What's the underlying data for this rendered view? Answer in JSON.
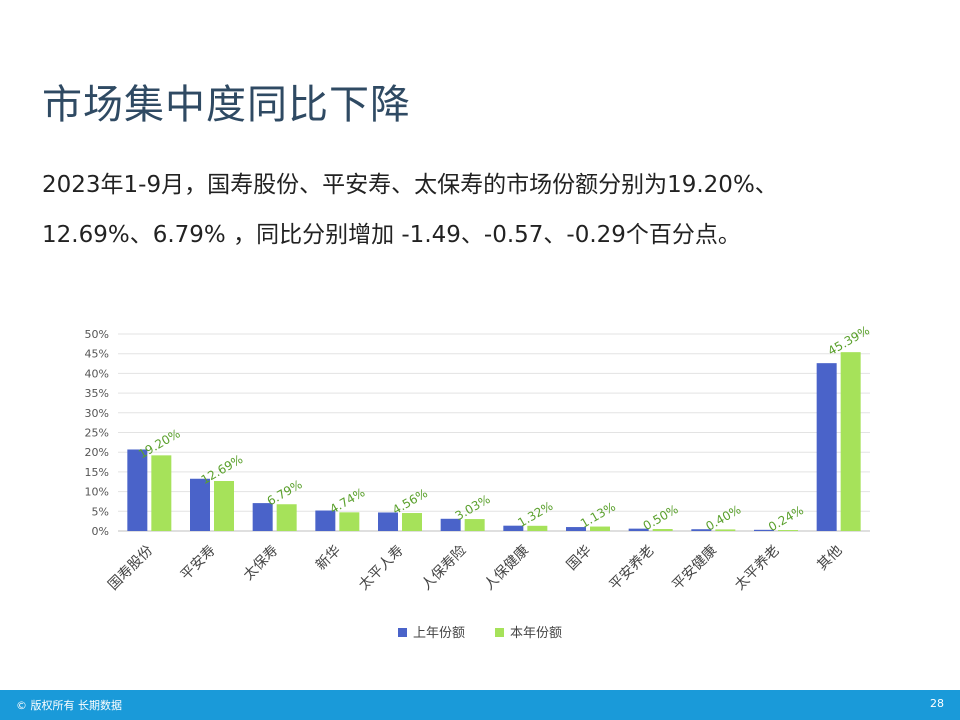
{
  "slide": {
    "title": "市场集中度同比下降",
    "text_line1": "2023年1-9月，国寿股份、平安寿、太保寿的市场份额分别为19.20%、",
    "text_line2": "12.69%、6.79% ，同比分别增加 -1.49、-0.57、-0.29个百分点。",
    "footer_copyright": "© 版权所有 长期数据",
    "page_number": "28"
  },
  "chart_data": {
    "type": "bar",
    "categories": [
      "国寿股份",
      "平安寿",
      "太保寿",
      "新华",
      "太平人寿",
      "人保寿险",
      "人保健康",
      "国华",
      "平安养老",
      "平安健康",
      "太平养老",
      "其他"
    ],
    "series": [
      {
        "name": "上年份额",
        "color": "#4a63c9",
        "values": [
          20.69,
          13.26,
          7.08,
          5.2,
          4.7,
          3.1,
          1.35,
          1.0,
          0.6,
          0.45,
          0.3,
          42.6
        ]
      },
      {
        "name": "本年份额",
        "color": "#a6e25a",
        "values": [
          19.2,
          12.69,
          6.79,
          4.74,
          4.56,
          3.03,
          1.32,
          1.13,
          0.5,
          0.4,
          0.24,
          45.39
        ]
      }
    ],
    "data_labels": [
      "19.20%",
      "12.69%",
      "6.79%",
      "4.74%",
      "4.56%",
      "3.03%",
      "1.32%",
      "1.13%",
      "0.50%",
      "0.40%",
      "0.24%",
      "45.39%"
    ],
    "yticks": [
      "0%",
      "5%",
      "10%",
      "15%",
      "20%",
      "25%",
      "30%",
      "35%",
      "40%",
      "45%",
      "50%"
    ],
    "ylim": [
      0,
      50
    ],
    "grid": true,
    "legend_position": "bottom",
    "label_color": "#5aa02c"
  }
}
